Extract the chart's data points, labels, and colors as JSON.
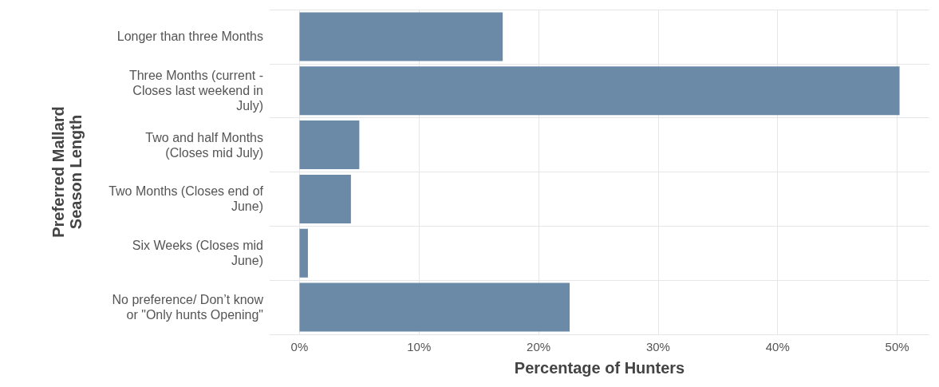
{
  "chart_data": {
    "type": "bar",
    "orientation": "horizontal",
    "xlabel": "Percentage of Hunters",
    "ylabel": "Preferred Mallard\nSeason Length",
    "categories": [
      "Longer than three Months",
      "Three Months (current -\nCloses last weekend in\nJuly)",
      "Two and half Months\n(Closes mid July)",
      "Two Months (Closes end of\nJune)",
      "Six Weeks (Closes mid\nJune)",
      "No preference/ Don’t know\nor \"Only hunts Opening\""
    ],
    "values": [
      17.0,
      50.2,
      5.0,
      4.3,
      0.7,
      22.6
    ],
    "color": "#6a8aa8",
    "xlim": [
      -2.5,
      52.7
    ],
    "xticks": [
      {
        "value": 0,
        "label": "0%"
      },
      {
        "value": 10,
        "label": "10%"
      },
      {
        "value": 20,
        "label": "20%"
      },
      {
        "value": 30,
        "label": "30%"
      },
      {
        "value": 40,
        "label": "40%"
      },
      {
        "value": 50,
        "label": "50%"
      }
    ],
    "grid": true
  }
}
